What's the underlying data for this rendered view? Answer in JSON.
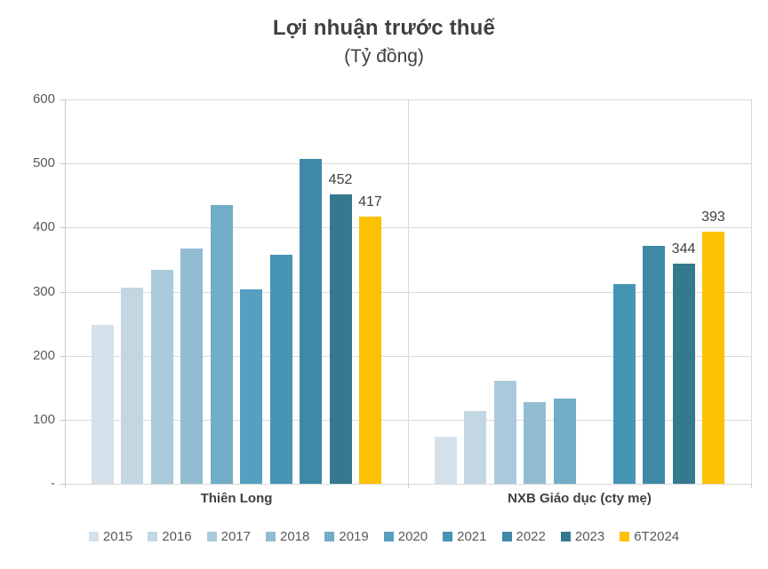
{
  "chart_data": {
    "type": "bar",
    "title": "Lợi nhuận trước thuế",
    "subtitle": "(Tỷ đồng)",
    "unit": "Tỷ đồng",
    "categories": [
      "Thiên Long",
      "NXB Giáo dục (cty mẹ)"
    ],
    "series": [
      {
        "name": "2015",
        "color": "#d4e1eb",
        "values": [
          248,
          74
        ],
        "show_labels": false
      },
      {
        "name": "2016",
        "color": "#c3d7e3",
        "values": [
          306,
          114
        ],
        "show_labels": false
      },
      {
        "name": "2017",
        "color": "#aac9da",
        "values": [
          334,
          161
        ],
        "show_labels": false
      },
      {
        "name": "2018",
        "color": "#92bcd1",
        "values": [
          367,
          128
        ],
        "show_labels": false
      },
      {
        "name": "2019",
        "color": "#72adc7",
        "values": [
          435,
          133
        ],
        "show_labels": false
      },
      {
        "name": "2020",
        "color": "#55a0c0",
        "values": [
          303,
          null
        ],
        "show_labels": false
      },
      {
        "name": "2021",
        "color": "#4595b5",
        "values": [
          358,
          312
        ],
        "show_labels": false
      },
      {
        "name": "2022",
        "color": "#3e8aa6",
        "values": [
          507,
          371
        ],
        "show_labels": false
      },
      {
        "name": "2023",
        "color": "#35798f",
        "values": [
          452,
          344
        ],
        "show_labels": true
      },
      {
        "name": "6T2024",
        "color": "#fdc101",
        "values": [
          417,
          393
        ],
        "show_labels": true
      }
    ],
    "ylim": [
      0,
      600
    ],
    "yticks": [
      {
        "value": 0,
        "label": "-"
      },
      {
        "value": 100,
        "label": "100"
      },
      {
        "value": 200,
        "label": "200"
      },
      {
        "value": 300,
        "label": "300"
      },
      {
        "value": 400,
        "label": "400"
      },
      {
        "value": 500,
        "label": "500"
      },
      {
        "value": 600,
        "label": "600"
      }
    ],
    "grid": true,
    "legend_position": "bottom",
    "colors": {
      "grid": "#d9d9d9",
      "axis_line": "#c9c9c9",
      "axis_text": "#595959",
      "category_text": "#404040",
      "label_text": "#404040",
      "title_text": "#3f3f3f",
      "highlight": "#fdc101"
    }
  }
}
